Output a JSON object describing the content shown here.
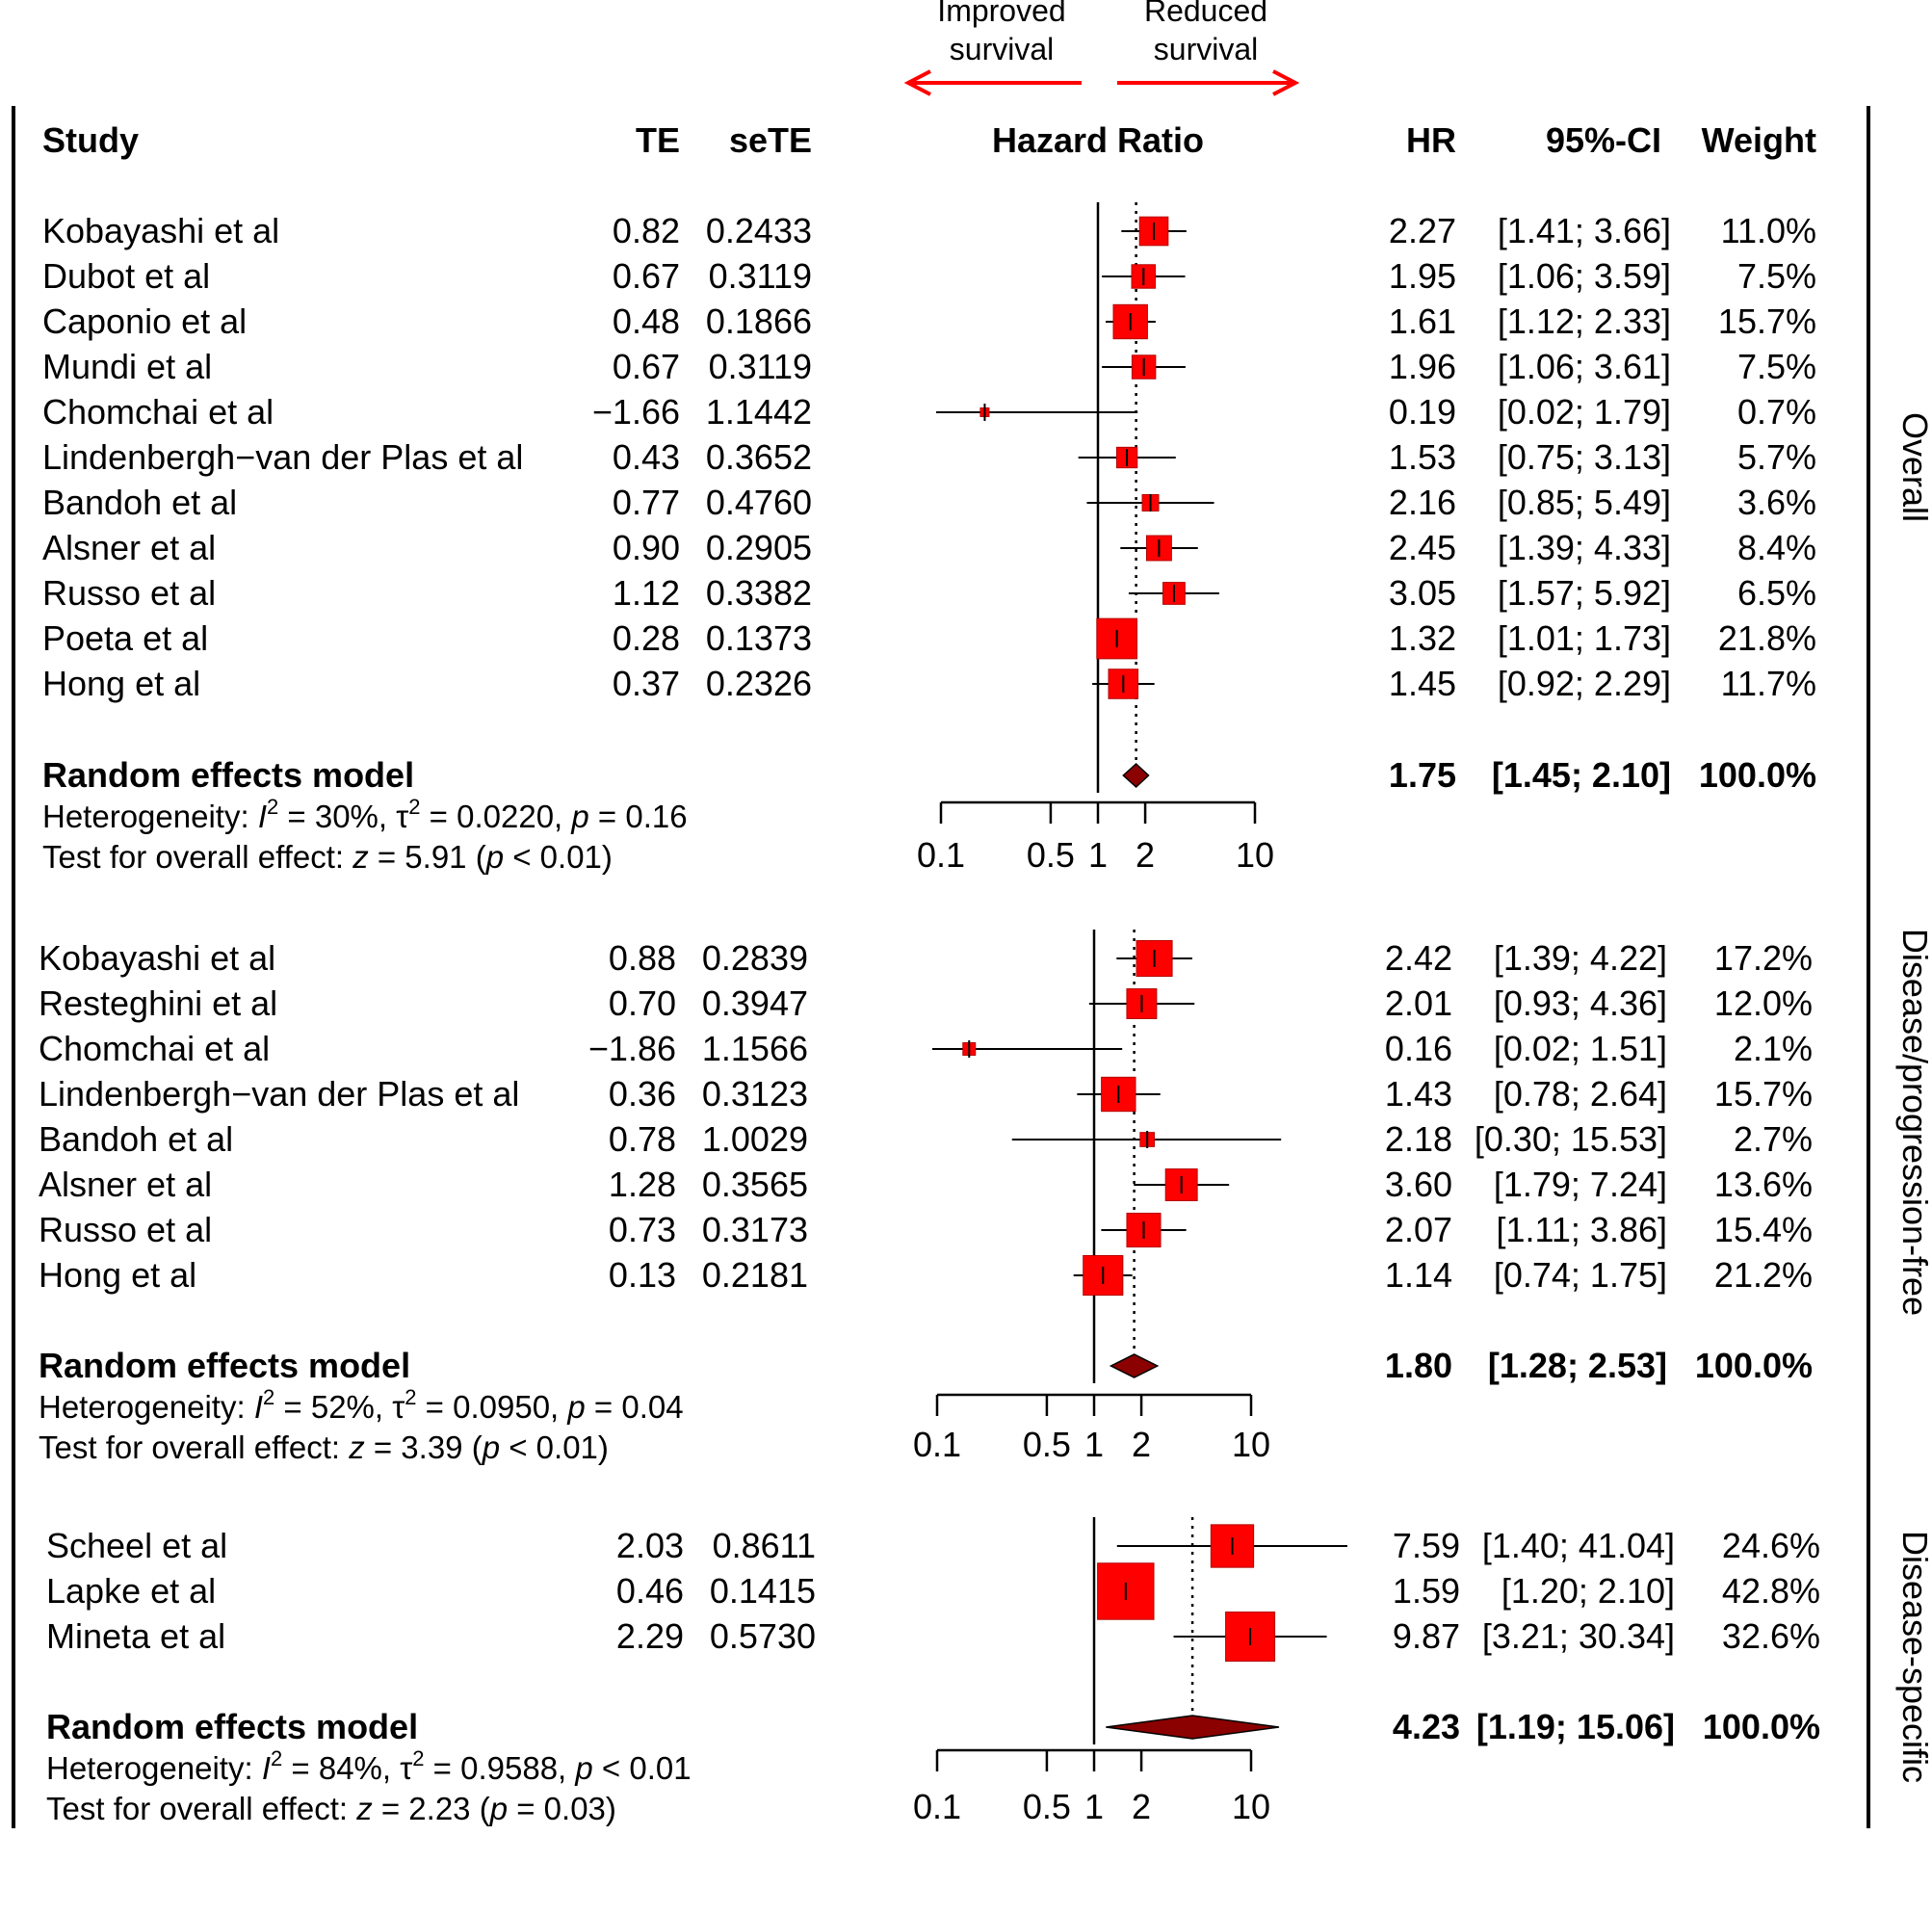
{
  "chart_data": {
    "type": "forest",
    "colors": {
      "box": "#ff0000",
      "box_border": "#b50000",
      "diamond": "#8b0000",
      "arrow": "#ff0000",
      "line": "#000000"
    },
    "direction_labels": {
      "left": [
        "Improved",
        "survival"
      ],
      "right": [
        "Reduced",
        "survival"
      ]
    },
    "header": {
      "study": "Study",
      "te": "TE",
      "sete": "seTE",
      "plot": "Hazard Ratio",
      "hr": "HR",
      "ci": "95%-CI",
      "weight": "Weight"
    },
    "x_scale": "log",
    "x_ticks": [
      0.1,
      0.5,
      1,
      2,
      10
    ],
    "x_tick_labels": [
      "0.1",
      "0.5",
      "1",
      "2",
      "10"
    ],
    "panels": [
      {
        "side_label": "Overall",
        "studies": [
          {
            "study": "Kobayashi et al",
            "te": "0.82",
            "sete": "0.2433",
            "hr": 2.27,
            "lower": 1.41,
            "upper": 3.66,
            "hr_label": "2.27",
            "ci_label": "[1.41; 3.66]",
            "weight_label": "11.0%",
            "weight": 11.0
          },
          {
            "study": "Dubot et al",
            "te": "0.67",
            "sete": "0.3119",
            "hr": 1.95,
            "lower": 1.06,
            "upper": 3.59,
            "hr_label": "1.95",
            "ci_label": "[1.06; 3.59]",
            "weight_label": "7.5%",
            "weight": 7.5
          },
          {
            "study": "Caponio et al",
            "te": "0.48",
            "sete": "0.1866",
            "hr": 1.61,
            "lower": 1.12,
            "upper": 2.33,
            "hr_label": "1.61",
            "ci_label": "[1.12; 2.33]",
            "weight_label": "15.7%",
            "weight": 15.7
          },
          {
            "study": "Mundi et al",
            "te": "0.67",
            "sete": "0.3119",
            "hr": 1.96,
            "lower": 1.06,
            "upper": 3.61,
            "hr_label": "1.96",
            "ci_label": "[1.06; 3.61]",
            "weight_label": "7.5%",
            "weight": 7.5
          },
          {
            "study": "Chomchai et al",
            "te": "−1.66",
            "sete": "1.1442",
            "hr": 0.19,
            "lower": 0.02,
            "upper": 1.79,
            "hr_label": "0.19",
            "ci_label": "[0.02; 1.79]",
            "weight_label": "0.7%",
            "weight": 0.7
          },
          {
            "study": "Lindenbergh−van der Plas et al",
            "te": "0.43",
            "sete": "0.3652",
            "hr": 1.53,
            "lower": 0.75,
            "upper": 3.13,
            "hr_label": "1.53",
            "ci_label": "[0.75; 3.13]",
            "weight_label": "5.7%",
            "weight": 5.7
          },
          {
            "study": "Bandoh et al",
            "te": "0.77",
            "sete": "0.4760",
            "hr": 2.16,
            "lower": 0.85,
            "upper": 5.49,
            "hr_label": "2.16",
            "ci_label": "[0.85; 5.49]",
            "weight_label": "3.6%",
            "weight": 3.6
          },
          {
            "study": "Alsner et al",
            "te": "0.90",
            "sete": "0.2905",
            "hr": 2.45,
            "lower": 1.39,
            "upper": 4.33,
            "hr_label": "2.45",
            "ci_label": "[1.39; 4.33]",
            "weight_label": "8.4%",
            "weight": 8.4
          },
          {
            "study": "Russo et al",
            "te": "1.12",
            "sete": "0.3382",
            "hr": 3.05,
            "lower": 1.57,
            "upper": 5.92,
            "hr_label": "3.05",
            "ci_label": "[1.57; 5.92]",
            "weight_label": "6.5%",
            "weight": 6.5
          },
          {
            "study": "Poeta et al",
            "te": "0.28",
            "sete": "0.1373",
            "hr": 1.32,
            "lower": 1.01,
            "upper": 1.73,
            "hr_label": "1.32",
            "ci_label": "[1.01; 1.73]",
            "weight_label": "21.8%",
            "weight": 21.8
          },
          {
            "study": "Hong et al",
            "te": "0.37",
            "sete": "0.2326",
            "hr": 1.45,
            "lower": 0.92,
            "upper": 2.29,
            "hr_label": "1.45",
            "ci_label": "[0.92; 2.29]",
            "weight_label": "11.7%",
            "weight": 11.7
          }
        ],
        "pooled": {
          "label": "Random effects model",
          "hr": 1.75,
          "lower": 1.45,
          "upper": 2.1,
          "hr_label": "1.75",
          "ci_label": "[1.45; 2.10]",
          "weight_label": "100.0%"
        },
        "heterogeneity": {
          "i2": "30%",
          "tau2": "0.0220",
          "p": "0.16",
          "p_rel": "="
        },
        "overall_effect": {
          "z": "5.91",
          "p": "0.01",
          "p_rel": "<"
        }
      },
      {
        "side_label": "Disease/progression-free",
        "studies": [
          {
            "study": "Kobayashi et al",
            "te": "0.88",
            "sete": "0.2839",
            "hr": 2.42,
            "lower": 1.39,
            "upper": 4.22,
            "hr_label": "2.42",
            "ci_label": "[1.39;  4.22]",
            "weight_label": "17.2%",
            "weight": 17.2
          },
          {
            "study": "Resteghini et al",
            "te": "0.70",
            "sete": "0.3947",
            "hr": 2.01,
            "lower": 0.93,
            "upper": 4.36,
            "hr_label": "2.01",
            "ci_label": "[0.93;  4.36]",
            "weight_label": "12.0%",
            "weight": 12.0
          },
          {
            "study": "Chomchai et al",
            "te": "−1.86",
            "sete": "1.1566",
            "hr": 0.16,
            "lower": 0.02,
            "upper": 1.51,
            "hr_label": "0.16",
            "ci_label": "[0.02;  1.51]",
            "weight_label": "2.1%",
            "weight": 2.1
          },
          {
            "study": "Lindenbergh−van der Plas et al",
            "te": "0.36",
            "sete": "0.3123",
            "hr": 1.43,
            "lower": 0.78,
            "upper": 2.64,
            "hr_label": "1.43",
            "ci_label": "[0.78;  2.64]",
            "weight_label": "15.7%",
            "weight": 15.7
          },
          {
            "study": "Bandoh et al",
            "te": "0.78",
            "sete": "1.0029",
            "hr": 2.18,
            "lower": 0.3,
            "upper": 15.53,
            "hr_label": "2.18",
            "ci_label": "[0.30; 15.53]",
            "weight_label": "2.7%",
            "weight": 2.7
          },
          {
            "study": "Alsner et al",
            "te": "1.28",
            "sete": "0.3565",
            "hr": 3.6,
            "lower": 1.79,
            "upper": 7.24,
            "hr_label": "3.60",
            "ci_label": "[1.79;  7.24]",
            "weight_label": "13.6%",
            "weight": 13.6
          },
          {
            "study": "Russo et al",
            "te": "0.73",
            "sete": "0.3173",
            "hr": 2.07,
            "lower": 1.11,
            "upper": 3.86,
            "hr_label": "2.07",
            "ci_label": "[1.11;  3.86]",
            "weight_label": "15.4%",
            "weight": 15.4
          },
          {
            "study": "Hong et al",
            "te": "0.13",
            "sete": "0.2181",
            "hr": 1.14,
            "lower": 0.74,
            "upper": 1.75,
            "hr_label": "1.14",
            "ci_label": "[0.74;  1.75]",
            "weight_label": "21.2%",
            "weight": 21.2
          }
        ],
        "pooled": {
          "label": "Random effects model",
          "hr": 1.8,
          "lower": 1.28,
          "upper": 2.53,
          "hr_label": "1.80",
          "ci_label": "[1.28;  2.53]",
          "weight_label": "100.0%"
        },
        "heterogeneity": {
          "i2": "52%",
          "tau2": "0.0950",
          "p": "0.04",
          "p_rel": "="
        },
        "overall_effect": {
          "z": "3.39",
          "p": "0.01",
          "p_rel": "<"
        }
      },
      {
        "side_label": "Disease-specific",
        "studies": [
          {
            "study": "Scheel et al",
            "te": "2.03",
            "sete": "0.8611",
            "hr": 7.59,
            "lower": 1.4,
            "upper": 41.04,
            "hr_label": "7.59",
            "ci_label": "[1.40; 41.04]",
            "weight_label": "24.6%",
            "weight": 24.6
          },
          {
            "study": "Lapke et al",
            "te": "0.46",
            "sete": "0.1415",
            "hr": 1.59,
            "lower": 1.2,
            "upper": 2.1,
            "hr_label": "1.59",
            "ci_label": "[1.20;  2.10]",
            "weight_label": "42.8%",
            "weight": 42.8
          },
          {
            "study": "Mineta et al",
            "te": "2.29",
            "sete": "0.5730",
            "hr": 9.87,
            "lower": 3.21,
            "upper": 30.34,
            "hr_label": "9.87",
            "ci_label": "[3.21; 30.34]",
            "weight_label": "32.6%",
            "weight": 32.6
          }
        ],
        "pooled": {
          "label": "Random effects model",
          "hr": 4.23,
          "lower": 1.19,
          "upper": 15.06,
          "hr_label": "4.23",
          "ci_label": "[1.19; 15.06]",
          "weight_label": "100.0%"
        },
        "heterogeneity": {
          "i2": "84%",
          "tau2": "0.9588",
          "p": "0.01",
          "p_rel": "<"
        },
        "overall_effect": {
          "z": "2.23",
          "p": "0.03",
          "p_rel": "="
        }
      }
    ]
  }
}
